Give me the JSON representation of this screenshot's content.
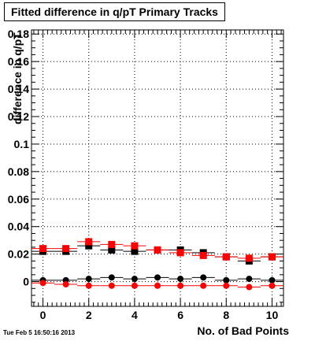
{
  "title": "Fitted difference in q/pT Primary Tracks",
  "timestamp": "Tue Feb  5 16:50:16 2013",
  "chart_data": {
    "type": "scatter",
    "title": "Fitted difference in q/pT Primary Tracks",
    "xlabel": "No. of Bad Points",
    "ylabel": "difference in q/pT",
    "xlim": [
      -0.5,
      10.5
    ],
    "ylim": [
      -0.018,
      0.183
    ],
    "xticks": [
      0,
      2,
      4,
      6,
      8,
      10
    ],
    "xtick_labels": [
      "0",
      "2",
      "4",
      "6",
      "8",
      "10"
    ],
    "yticks": [
      0,
      0.02,
      0.04,
      0.06,
      0.08,
      0.1,
      0.12,
      0.14,
      0.16,
      0.18
    ],
    "ytick_labels": [
      "0",
      "0.02",
      "0.04",
      "0.06",
      "0.08",
      "0.1",
      "0.12",
      "0.14",
      "0.16",
      "0.18"
    ],
    "grid": true,
    "series": [
      {
        "marker": "square",
        "color": "#000000",
        "x": [
          0,
          1,
          2,
          3,
          4,
          5,
          6,
          7,
          8,
          9,
          10
        ],
        "y": [
          0.022,
          0.022,
          0.026,
          0.023,
          0.022,
          0.023,
          0.023,
          0.021,
          0.018,
          0.015,
          0.018
        ],
        "xerr": 0.5,
        "yerr": [
          0.001,
          0.001,
          0.001,
          0.001,
          0.001,
          0.001,
          0.001,
          0.001,
          0.001,
          0.001,
          0.001
        ]
      },
      {
        "marker": "square",
        "color": "#ff0000",
        "x": [
          0,
          1,
          2,
          3,
          4,
          5,
          6,
          7,
          8,
          9,
          10
        ],
        "y": [
          0.024,
          0.024,
          0.029,
          0.027,
          0.026,
          0.023,
          0.021,
          0.019,
          0.018,
          0.017,
          0.018
        ],
        "xerr": 0.5,
        "yerr": [
          0.001,
          0.001,
          0.001,
          0.001,
          0.001,
          0.001,
          0.001,
          0.001,
          0.001,
          0.001,
          0.001
        ]
      },
      {
        "marker": "circle",
        "color": "#000000",
        "x": [
          0,
          1,
          2,
          3,
          4,
          5,
          6,
          7,
          8,
          9,
          10
        ],
        "y": [
          0.001,
          0.001,
          0.002,
          0.003,
          0.002,
          0.003,
          0.002,
          0.003,
          0.001,
          0.002,
          0.001
        ],
        "xerr": 0.5,
        "yerr": [
          0.001,
          0.001,
          0.001,
          0.001,
          0.001,
          0.001,
          0.001,
          0.001,
          0.001,
          0.001,
          0.001
        ]
      },
      {
        "marker": "circle",
        "color": "#ff0000",
        "x": [
          0,
          1,
          2,
          3,
          4,
          5,
          6,
          7,
          8,
          9,
          10
        ],
        "y": [
          -0.001,
          -0.002,
          -0.003,
          -0.003,
          -0.003,
          -0.003,
          -0.003,
          -0.003,
          -0.003,
          -0.004,
          -0.003
        ],
        "xerr": 0.5,
        "yerr": [
          0.001,
          0.001,
          0.001,
          0.001,
          0.001,
          0.001,
          0.001,
          0.001,
          0.001,
          0.001,
          0.001
        ]
      }
    ]
  }
}
